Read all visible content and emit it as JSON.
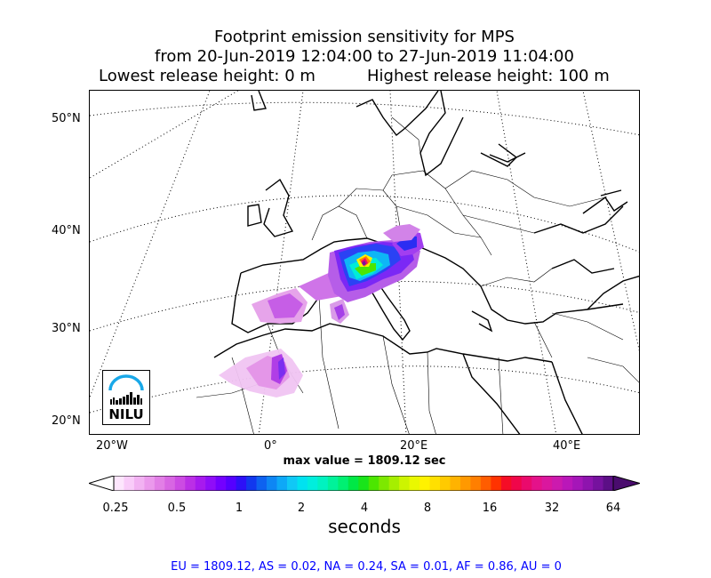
{
  "title": {
    "line1": "Footprint emission sensitivity for MPS",
    "line2": "from 20-Jun-2019 12:04:00 to 27-Jun-2019 11:04:00",
    "lowest": "Lowest release height: 0 m",
    "highest": "Highest release height: 100 m"
  },
  "map": {
    "lat_labels": [
      "50°N",
      "40°N",
      "30°N",
      "20°N"
    ],
    "lon_labels": [
      "20°W",
      "0°",
      "20°E",
      "40°E"
    ],
    "max_value": "max value = 1809.12 sec"
  },
  "logo": {
    "text": "NILU"
  },
  "colorbar": {
    "ticks": [
      "0.25",
      "0.5",
      "1",
      "2",
      "4",
      "8",
      "16",
      "32",
      "64"
    ],
    "label": "seconds",
    "colors": [
      "#fde6fd",
      "#f9ccf9",
      "#f2b2f2",
      "#eb99ec",
      "#e27fe6",
      "#d866e3",
      "#cc4be3",
      "#bb2fe6",
      "#a71aee",
      "#8f0df8",
      "#7300ff",
      "#5500ff",
      "#2d10f7",
      "#1238ee",
      "#0e62f0",
      "#0e86f4",
      "#0ea8f7",
      "#10c8f6",
      "#00e2f0",
      "#00eedd",
      "#00f2c0",
      "#00f29a",
      "#00f072",
      "#00e846",
      "#19e41a",
      "#4ce600",
      "#7de800",
      "#a6ee00",
      "#cdf400",
      "#eaf800",
      "#fff200",
      "#ffe000",
      "#ffca00",
      "#ffb300",
      "#ff9900",
      "#ff7f00",
      "#ff5d00",
      "#ff3300",
      "#f50d26",
      "#f0064a",
      "#ea0a6c",
      "#e4128a",
      "#da179e",
      "#cc1aae",
      "#ba17b9",
      "#a516b8",
      "#8e14ae",
      "#76129e",
      "#5c0f86"
    ]
  },
  "footer": "EU = 1809.12,  AS = 0.02,  NA = 0.24,  SA = 0.01,  AF = 0.86,  AU = 0"
}
